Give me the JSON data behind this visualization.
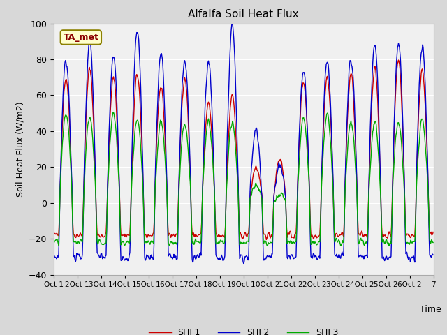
{
  "title": "Alfalfa Soil Heat Flux",
  "xlabel": "Time",
  "ylabel": "Soil Heat Flux (W/m2)",
  "ylim": [
    -40,
    100
  ],
  "legend_labels": [
    "SHF1",
    "SHF2",
    "SHF3"
  ],
  "annotation_text": "TA_met",
  "annotation_color": "#8b0000",
  "annotation_bg": "#ffffcc",
  "annotation_edge": "#8b8000",
  "shf1_color": "#cc0000",
  "shf2_color": "#0000cc",
  "shf3_color": "#00aa00",
  "line_width": 1.0,
  "fig_bg": "#d8d8d8",
  "plot_bg": "#f0f0f0",
  "grid_color": "white",
  "tick_labels": [
    "Oct 1",
    "2Oct 1",
    "3Oct 1",
    "4Oct 1",
    "5Oct 1",
    "6Oct 1",
    "7Oct 1",
    "8Oct 1",
    "9Oct 1",
    "0Oct 2",
    "1Oct 2",
    "2Oct 2",
    "3Oct 2",
    "4Oct 2",
    "5Oct 2",
    "6Oct 2",
    "7"
  ],
  "yticks": [
    -40,
    -20,
    0,
    20,
    40,
    60,
    80,
    100
  ],
  "days": 16,
  "pts_per_day": 48,
  "shf1_peaks": [
    70,
    75,
    70,
    72,
    65,
    70,
    55,
    60,
    20,
    25,
    68,
    70,
    72,
    75,
    80,
    75
  ],
  "shf2_peaks": [
    80,
    90,
    82,
    97,
    84,
    79,
    79,
    100,
    41,
    22,
    74,
    80,
    81,
    88,
    90,
    88
  ],
  "shf3_peaks": [
    50,
    48,
    50,
    47,
    46,
    44,
    45,
    45,
    10,
    5,
    48,
    50,
    45,
    44,
    45,
    46
  ],
  "shf1_trough": -18,
  "shf2_trough": -30,
  "shf3_trough": -22
}
